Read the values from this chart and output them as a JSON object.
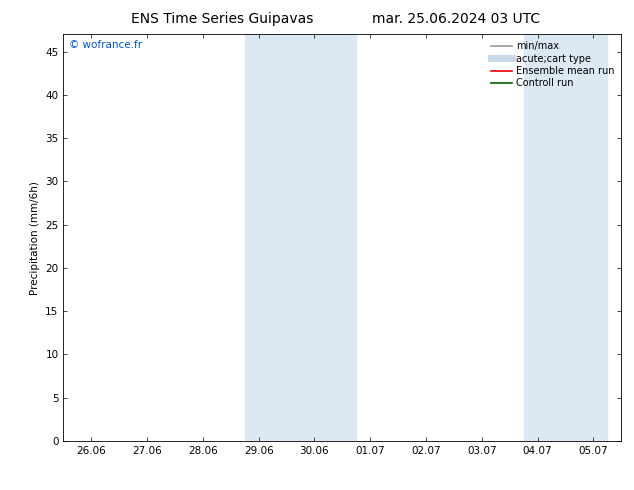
{
  "title_left": "ENS Time Series Guipavas",
  "title_right": "mar. 25.06.2024 03 UTC",
  "ylabel": "Precipitation (mm/6h)",
  "watermark": "© wofrance.fr",
  "watermark_color": "#0055cc",
  "xlim_start": -0.5,
  "xlim_end": 9.5,
  "ylim_min": 0,
  "ylim_max": 47,
  "yticks": [
    0,
    5,
    10,
    15,
    20,
    25,
    30,
    35,
    40,
    45
  ],
  "xtick_labels": [
    "26.06",
    "27.06",
    "28.06",
    "29.06",
    "30.06",
    "01.07",
    "02.07",
    "03.07",
    "04.07",
    "05.07"
  ],
  "xtick_positions": [
    0,
    1,
    2,
    3,
    4,
    5,
    6,
    7,
    8,
    9
  ],
  "shaded_regions": [
    {
      "xmin": 2.75,
      "xmax": 3.25,
      "color": "#dce9f5"
    },
    {
      "xmin": 3.25,
      "xmax": 4.75,
      "color": "#dce9f5"
    },
    {
      "xmin": 7.75,
      "xmax": 8.25,
      "color": "#dce9f5"
    },
    {
      "xmin": 8.25,
      "xmax": 9.25,
      "color": "#dce9f5"
    }
  ],
  "bg_color": "#ffffff",
  "legend_entries": [
    {
      "label": "min/max",
      "color": "#999999",
      "lw": 1.2,
      "style": "solid"
    },
    {
      "label": "acute;cart type",
      "color": "#c8daea",
      "lw": 5,
      "style": "solid"
    },
    {
      "label": "Ensemble mean run",
      "color": "#ee0000",
      "lw": 1.2,
      "style": "solid"
    },
    {
      "label": "Controll run",
      "color": "#006600",
      "lw": 1.2,
      "style": "solid"
    }
  ],
  "title_fontsize": 10,
  "tick_fontsize": 7.5,
  "ylabel_fontsize": 7.5,
  "legend_fontsize": 7
}
